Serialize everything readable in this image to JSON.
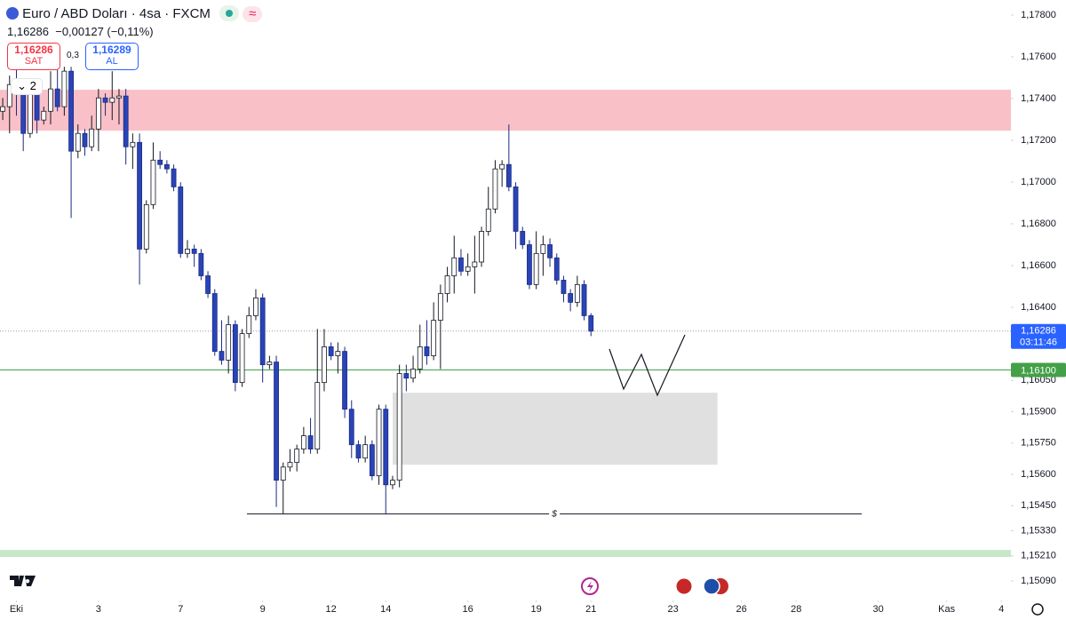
{
  "header": {
    "title": "Euro / ABD Doları · 4sa · FXCM",
    "price": "1,16286",
    "change": "−0,00127 (−0,11%)",
    "sell": {
      "price": "1,16286",
      "label": "SAT"
    },
    "spread": "0,3",
    "buy": {
      "price": "1,16289",
      "label": "AL"
    },
    "indicator_count": 2
  },
  "chart_data": {
    "type": "candlestick",
    "open": [
      1.17339,
      1.17361,
      1.17467,
      1.17446,
      1.17233,
      1.17425,
      1.17297,
      1.17339,
      1.17446,
      1.17361,
      1.17531,
      1.17148,
      1.17233,
      1.17169,
      1.17254,
      1.17403,
      1.17382,
      1.17403,
      1.17412,
      1.17169,
      1.1719,
      1.16679,
      1.16892,
      1.17105,
      1.17084,
      1.17063,
      1.16977,
      1.16658,
      1.16679,
      1.16658,
      1.16551,
      1.16466,
      1.16189,
      1.16147,
      1.16317,
      1.1604,
      1.16274,
      1.1636,
      1.16445,
      1.16125,
      1.16138,
      1.15572,
      1.15635,
      1.15657,
      1.15721,
      1.15785,
      1.15721,
      1.1604,
      1.16211,
      1.16168,
      1.16189,
      1.15912,
      1.15742,
      1.15678,
      1.15742,
      1.15593,
      1.15912,
      1.1555,
      1.15572,
      1.16083,
      1.16061,
      1.16104,
      1.16211,
      1.16168,
      1.16338,
      1.16466,
      1.16551,
      1.16637,
      1.16573,
      1.16594,
      1.16617,
      1.16764,
      1.16871,
      1.17063,
      1.17084,
      1.16977,
      1.16764,
      1.167,
      1.16509,
      1.16658,
      1.167,
      1.16637,
      1.1653,
      1.16466,
      1.16424,
      1.16509,
      1.1636
    ],
    "high": [
      1.17403,
      1.1751,
      1.17574,
      1.17467,
      1.17467,
      1.17446,
      1.17361,
      1.17531,
      1.17552,
      1.17552,
      1.17552,
      1.17276,
      1.17254,
      1.17318,
      1.17446,
      1.17425,
      1.17531,
      1.17446,
      1.17446,
      1.17233,
      1.17233,
      1.16913,
      1.1719,
      1.17148,
      1.17105,
      1.17084,
      1.16999,
      1.16722,
      1.167,
      1.16679,
      1.16573,
      1.16487,
      1.16338,
      1.1636,
      1.16338,
      1.16296,
      1.16402,
      1.16487,
      1.16466,
      1.16168,
      1.16168,
      1.15657,
      1.15721,
      1.15742,
      1.15827,
      1.1587,
      1.16296,
      1.16296,
      1.16232,
      1.16232,
      1.16211,
      1.15955,
      1.15763,
      1.15785,
      1.15763,
      1.15934,
      1.15934,
      1.15593,
      1.16125,
      1.16125,
      1.16168,
      1.16317,
      1.16338,
      1.16424,
      1.16509,
      1.16594,
      1.16743,
      1.16679,
      1.16658,
      1.16743,
      1.16786,
      1.16977,
      1.17105,
      1.17105,
      1.17276,
      1.16999,
      1.16786,
      1.16722,
      1.16764,
      1.16743,
      1.1673,
      1.16658,
      1.16551,
      1.16487,
      1.16551,
      1.1653,
      1.16372
    ],
    "low": [
      1.17297,
      1.17233,
      1.17318,
      1.17148,
      1.17212,
      1.17233,
      1.17276,
      1.17276,
      1.17339,
      1.17318,
      1.16828,
      1.17114,
      1.17126,
      1.17148,
      1.17148,
      1.17318,
      1.17297,
      1.17276,
      1.17084,
      1.17063,
      1.16509,
      1.16658,
      1.16871,
      1.17063,
      1.17041,
      1.16956,
      1.16637,
      1.16637,
      1.16594,
      1.1653,
      1.16445,
      1.16168,
      1.16125,
      1.16083,
      1.15998,
      1.16019,
      1.16253,
      1.16338,
      1.1604,
      1.16104,
      1.15444,
      1.1541,
      1.15614,
      1.15614,
      1.15699,
      1.15699,
      1.15699,
      1.15998,
      1.16147,
      1.16083,
      1.1587,
      1.15678,
      1.15657,
      1.15657,
      1.15572,
      1.1555,
      1.1541,
      1.15529,
      1.15538,
      1.15998,
      1.1604,
      1.16083,
      1.16125,
      1.16147,
      1.16104,
      1.16424,
      1.16466,
      1.16551,
      1.16551,
      1.16466,
      1.16594,
      1.16743,
      1.1685,
      1.16977,
      1.16956,
      1.16679,
      1.16679,
      1.16487,
      1.16487,
      1.16551,
      1.16594,
      1.16509,
      1.16424,
      1.16381,
      1.16402,
      1.16338,
      1.16262
    ],
    "close": [
      1.17361,
      1.17467,
      1.17446,
      1.17233,
      1.17425,
      1.17297,
      1.17339,
      1.17446,
      1.17361,
      1.17531,
      1.17148,
      1.17233,
      1.17169,
      1.17254,
      1.17403,
      1.17382,
      1.17403,
      1.17412,
      1.17169,
      1.1719,
      1.16679,
      1.16892,
      1.17105,
      1.17084,
      1.17063,
      1.16977,
      1.16658,
      1.16679,
      1.16658,
      1.16551,
      1.16466,
      1.16189,
      1.16147,
      1.16317,
      1.1604,
      1.16274,
      1.1636,
      1.16445,
      1.16125,
      1.16138,
      1.15572,
      1.15635,
      1.15657,
      1.15721,
      1.15785,
      1.15721,
      1.1604,
      1.16211,
      1.16168,
      1.16189,
      1.15912,
      1.15742,
      1.15678,
      1.15742,
      1.15593,
      1.15912,
      1.1555,
      1.15572,
      1.16083,
      1.16061,
      1.16104,
      1.16211,
      1.16168,
      1.16338,
      1.16466,
      1.16551,
      1.16637,
      1.16573,
      1.16594,
      1.16617,
      1.16764,
      1.16871,
      1.17063,
      1.17084,
      1.16977,
      1.16764,
      1.167,
      1.16509,
      1.16658,
      1.167,
      1.16637,
      1.1653,
      1.16466,
      1.16424,
      1.16509,
      1.1636,
      1.16286
    ],
    "up_color": "#ffffff",
    "down_color": "#2a44b8",
    "xlim": [
      -0.4,
      147.4
    ],
    "xticks": [
      {
        "value": 2,
        "label": "Eki"
      },
      {
        "value": 14,
        "label": "3"
      },
      {
        "value": 26,
        "label": "7"
      },
      {
        "value": 38,
        "label": "9"
      },
      {
        "value": 48,
        "label": "12"
      },
      {
        "value": 56,
        "label": "14"
      },
      {
        "value": 68,
        "label": "16"
      },
      {
        "value": 78,
        "label": "19"
      },
      {
        "value": 86,
        "label": "21"
      },
      {
        "value": 98,
        "label": "23"
      },
      {
        "value": 108,
        "label": "26"
      },
      {
        "value": 116,
        "label": "28"
      },
      {
        "value": 128,
        "label": "30"
      },
      {
        "value": 138,
        "label": "Kas"
      },
      {
        "value": 146,
        "label": "4"
      }
    ],
    "ylim": [
      1.15013,
      1.17872
    ],
    "yticks": [
      {
        "value": 1.178,
        "label": "1,17800"
      },
      {
        "value": 1.176,
        "label": "1,17600"
      },
      {
        "value": 1.174,
        "label": "1,17400"
      },
      {
        "value": 1.172,
        "label": "1,17200"
      },
      {
        "value": 1.17,
        "label": "1,17000"
      },
      {
        "value": 1.168,
        "label": "1,16800"
      },
      {
        "value": 1.166,
        "label": "1,16600"
      },
      {
        "value": 1.164,
        "label": "1,16400"
      },
      {
        "value": 1.1605,
        "label": "1,16050"
      },
      {
        "value": 1.159,
        "label": "1,15900"
      },
      {
        "value": 1.1575,
        "label": "1,15750"
      },
      {
        "value": 1.156,
        "label": "1,15600"
      },
      {
        "value": 1.1545,
        "label": "1,15450"
      },
      {
        "value": 1.1533,
        "label": "1,15330"
      },
      {
        "value": 1.1521,
        "label": "1,15210"
      },
      {
        "value": 1.1509,
        "label": "1,15090"
      }
    ],
    "zones": [
      {
        "from": 1.17246,
        "to": 1.17442,
        "color": "#f9c1c7"
      },
      {
        "from": 1.15646,
        "to": 1.15991,
        "x": [
          57,
          104.5
        ],
        "color": "#e0e0e0"
      },
      {
        "from": 1.15204,
        "to": 1.15238,
        "color": "#c8e6c9"
      }
    ],
    "level": {
      "value": 1.1541,
      "x": [
        35.7,
        125.6
      ],
      "label": "$"
    },
    "price_line": {
      "value": 1.161,
      "label": "1,16100",
      "color": "#43a047"
    },
    "last": {
      "value": 1.16286,
      "label": "1,16286",
      "countdown": "03:11:46",
      "color": "#2962ff"
    }
  }
}
